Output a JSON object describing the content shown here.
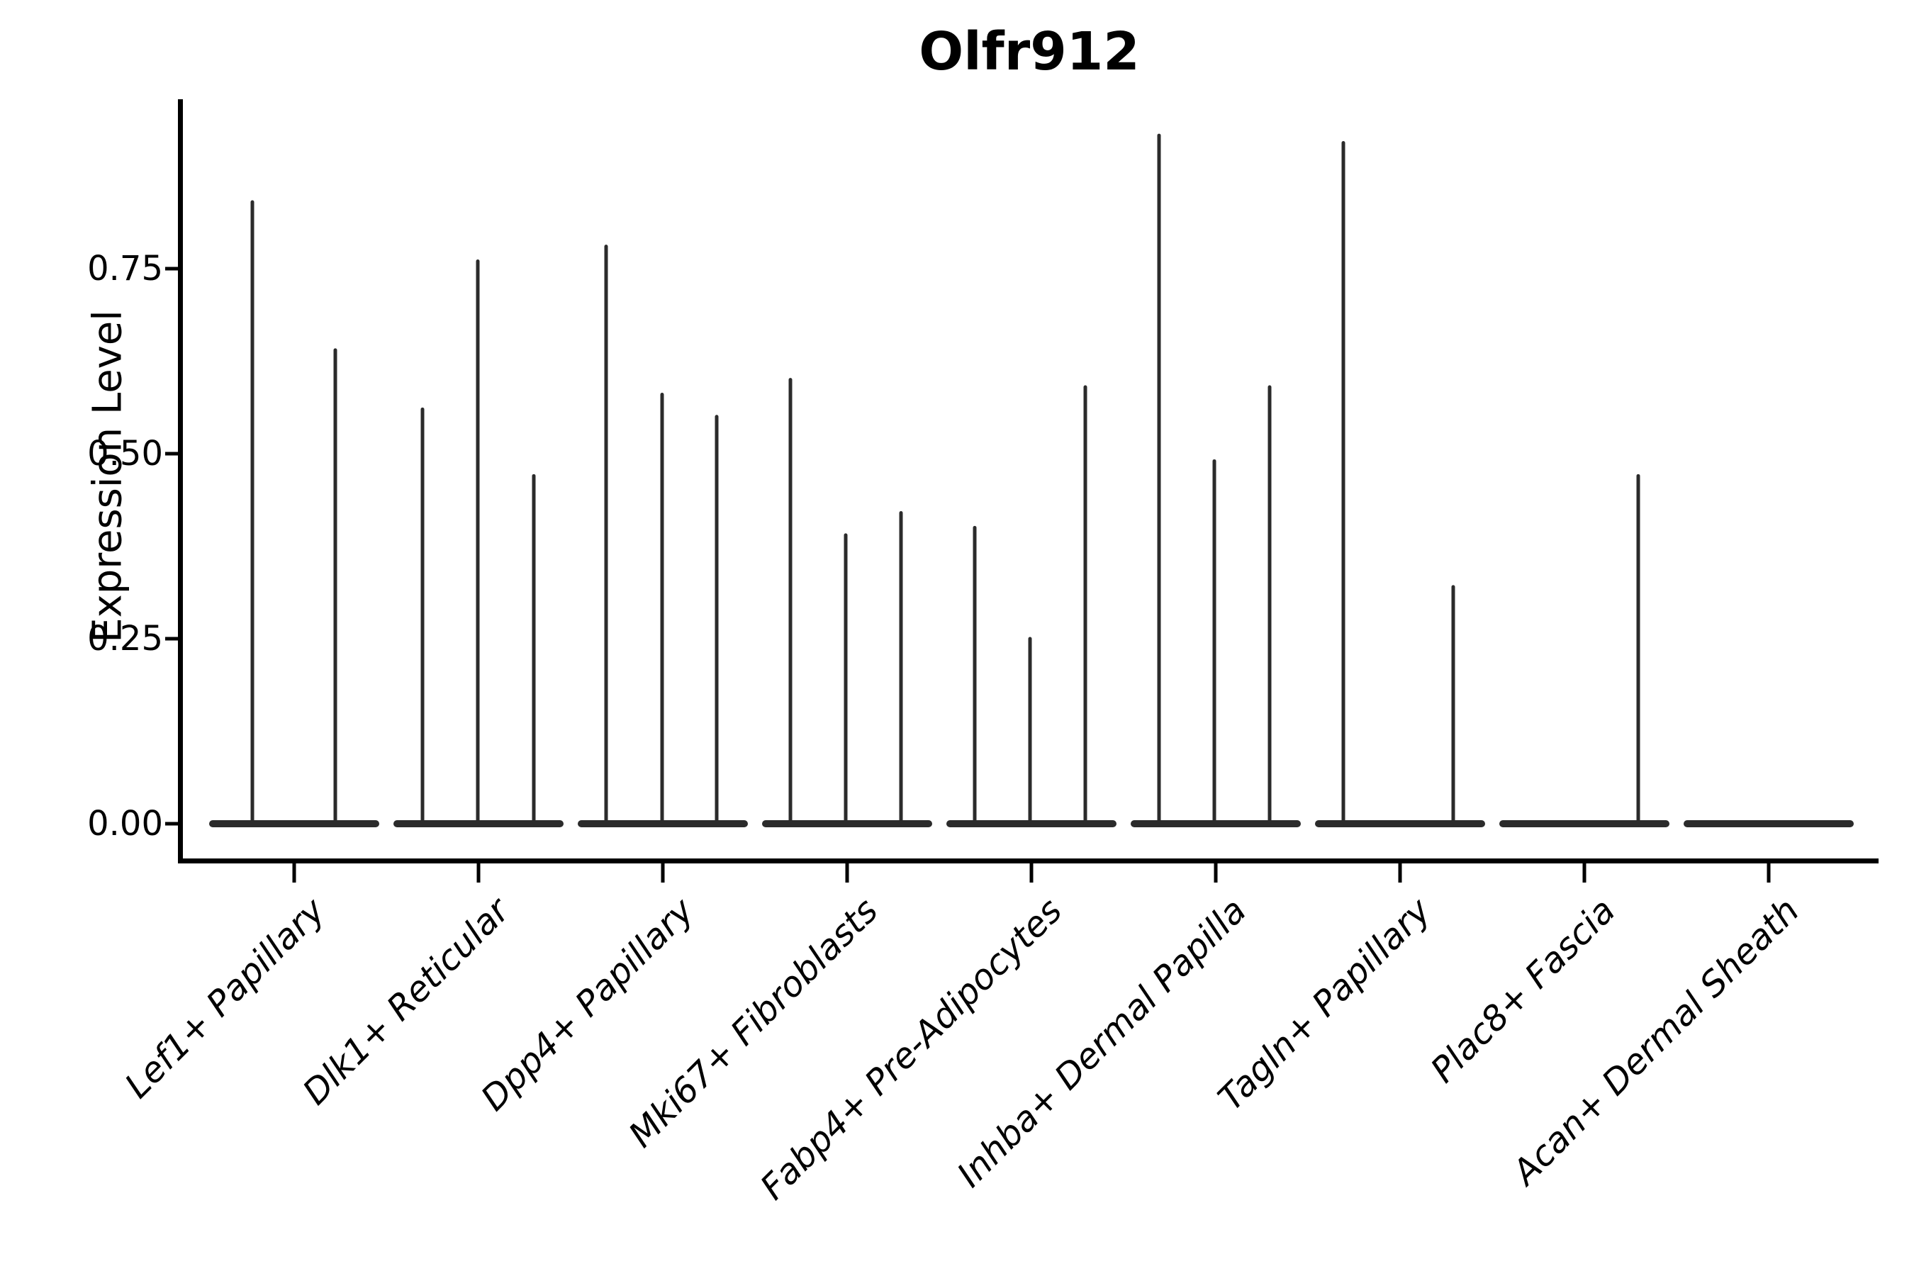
{
  "title": "Olfr912",
  "y_axis": {
    "label": "Expression Level",
    "tick_labels": [
      "0.00",
      "0.25",
      "0.50",
      "0.75"
    ]
  },
  "chart_data": {
    "type": "violin",
    "title": "Olfr912",
    "xlabel": "",
    "ylabel": "Expression Level",
    "ylim": [
      -0.05,
      0.98
    ],
    "y_ticks": [
      0.0,
      0.25,
      0.5,
      0.75
    ],
    "grid": false,
    "legend_position": "none",
    "background": "#ffffff",
    "categories": [
      "Lef1+ Papillary",
      "Dlk1+ Reticular",
      "Dpp4+ Papillary",
      "Mki67+ Fibroblasts",
      "Fabp4+ Pre-Adipocytes",
      "Inhba+ Dermal Papilla",
      "Tagln+ Papillary",
      "Plac8+ Fascia",
      "Acan+ Dermal Sheath"
    ],
    "series": [
      {
        "category": "Lef1+ Papillary",
        "violins": [
          {
            "offset": -59,
            "max": 0.84
          },
          {
            "offset": 58,
            "max": 0.64
          }
        ]
      },
      {
        "category": "Dlk1+ Reticular",
        "violins": [
          {
            "offset": -79,
            "max": 0.56
          },
          {
            "offset": -1,
            "max": 0.76
          },
          {
            "offset": 78,
            "max": 0.47
          }
        ]
      },
      {
        "category": "Dpp4+ Papillary",
        "violins": [
          {
            "offset": -80,
            "max": 0.78
          },
          {
            "offset": -1,
            "max": 0.58
          },
          {
            "offset": 76,
            "max": 0.55
          }
        ]
      },
      {
        "category": "Mki67+ Fibroblasts",
        "violins": [
          {
            "offset": -80,
            "max": 0.6
          },
          {
            "offset": -2,
            "max": 0.39
          },
          {
            "offset": 76,
            "max": 0.42
          }
        ]
      },
      {
        "category": "Fabp4+ Pre-Adipocytes",
        "violins": [
          {
            "offset": -80,
            "max": 0.4
          },
          {
            "offset": -2,
            "max": 0.25
          },
          {
            "offset": 76,
            "max": 0.59
          }
        ]
      },
      {
        "category": "Inhba+ Dermal Papilla",
        "violins": [
          {
            "offset": -80,
            "max": 0.93
          },
          {
            "offset": -2,
            "max": 0.49
          },
          {
            "offset": 76,
            "max": 0.59
          }
        ]
      },
      {
        "category": "Tagln+ Papillary",
        "violins": [
          {
            "offset": -80,
            "max": 0.92
          },
          {
            "offset": 75,
            "max": 0.32
          }
        ]
      },
      {
        "category": "Plac8+ Fascia",
        "violins": [
          {
            "offset": 76,
            "max": 0.47
          }
        ]
      },
      {
        "category": "Acan+ Dermal Sheath",
        "violins": []
      }
    ],
    "colors": {
      "violin": "#2b2b2b",
      "axis": "#000000",
      "text": "#000000",
      "background": "#ffffff"
    }
  }
}
